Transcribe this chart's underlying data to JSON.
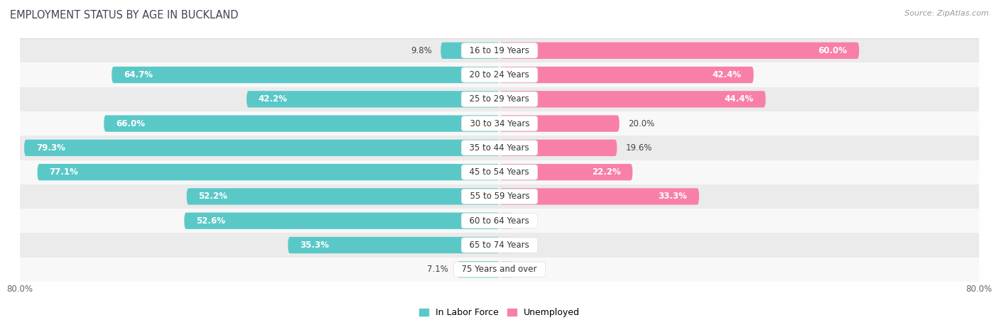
{
  "title": "EMPLOYMENT STATUS BY AGE IN BUCKLAND",
  "source": "Source: ZipAtlas.com",
  "categories": [
    "16 to 19 Years",
    "20 to 24 Years",
    "25 to 29 Years",
    "30 to 34 Years",
    "35 to 44 Years",
    "45 to 54 Years",
    "55 to 59 Years",
    "60 to 64 Years",
    "65 to 74 Years",
    "75 Years and over"
  ],
  "labor_force": [
    9.8,
    64.7,
    42.2,
    66.0,
    79.3,
    77.1,
    52.2,
    52.6,
    35.3,
    7.1
  ],
  "unemployed": [
    60.0,
    42.4,
    44.4,
    20.0,
    19.6,
    22.2,
    33.3,
    0.0,
    0.0,
    0.0
  ],
  "labor_color": "#5bc8c8",
  "unemployed_color": "#f880a8",
  "axis_limit": 80.0,
  "row_bg_odd": "#ebebeb",
  "row_bg_even": "#f8f8f8",
  "title_fontsize": 10.5,
  "cat_label_fontsize": 8.5,
  "bar_label_fontsize": 8.5,
  "legend_fontsize": 9,
  "source_fontsize": 8
}
